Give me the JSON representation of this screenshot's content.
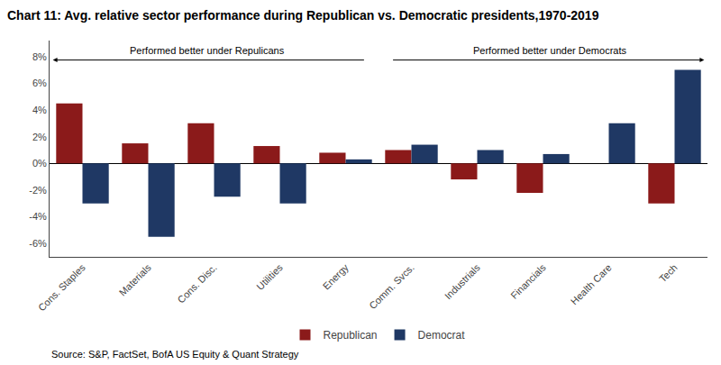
{
  "chart_data": {
    "type": "bar",
    "title": "Chart 11: Avg. relative sector performance during Republican vs. Democratic presidents,1970-2019",
    "categories": [
      "Cons. Staples",
      "Materials",
      "Cons. Disc.",
      "Utilities",
      "Energy",
      "Comm. Svcs.",
      "Industrials",
      "Financials",
      "Health Care",
      "Tech"
    ],
    "series": [
      {
        "name": "Republican",
        "color": "#8B1A1A",
        "values": [
          4.5,
          1.5,
          3.0,
          1.3,
          0.8,
          1.0,
          -1.2,
          -2.2,
          0.0,
          -3.0
        ]
      },
      {
        "name": "Democrat",
        "color": "#1F3864",
        "values": [
          -3.0,
          -5.5,
          -2.5,
          -3.0,
          0.3,
          1.4,
          1.0,
          0.7,
          3.0,
          7.0
        ]
      }
    ],
    "ylim": [
      -7,
      9.2
    ],
    "yticks": [
      {
        "value": -6,
        "label": "-6%"
      },
      {
        "value": -4,
        "label": "-4%"
      },
      {
        "value": -2,
        "label": "-2%"
      },
      {
        "value": 0,
        "label": "0%"
      },
      {
        "value": 2,
        "label": "2%"
      },
      {
        "value": 4,
        "label": "4%"
      },
      {
        "value": 6,
        "label": "6%"
      },
      {
        "value": 8,
        "label": "8%"
      }
    ],
    "annotations": [
      "Performed better under Repulicans",
      "Performed better under Democrats"
    ],
    "source": "Source: S&P, FactSet, BofA US Equity & Quant Strategy",
    "legend": "bottom",
    "grid": false
  }
}
